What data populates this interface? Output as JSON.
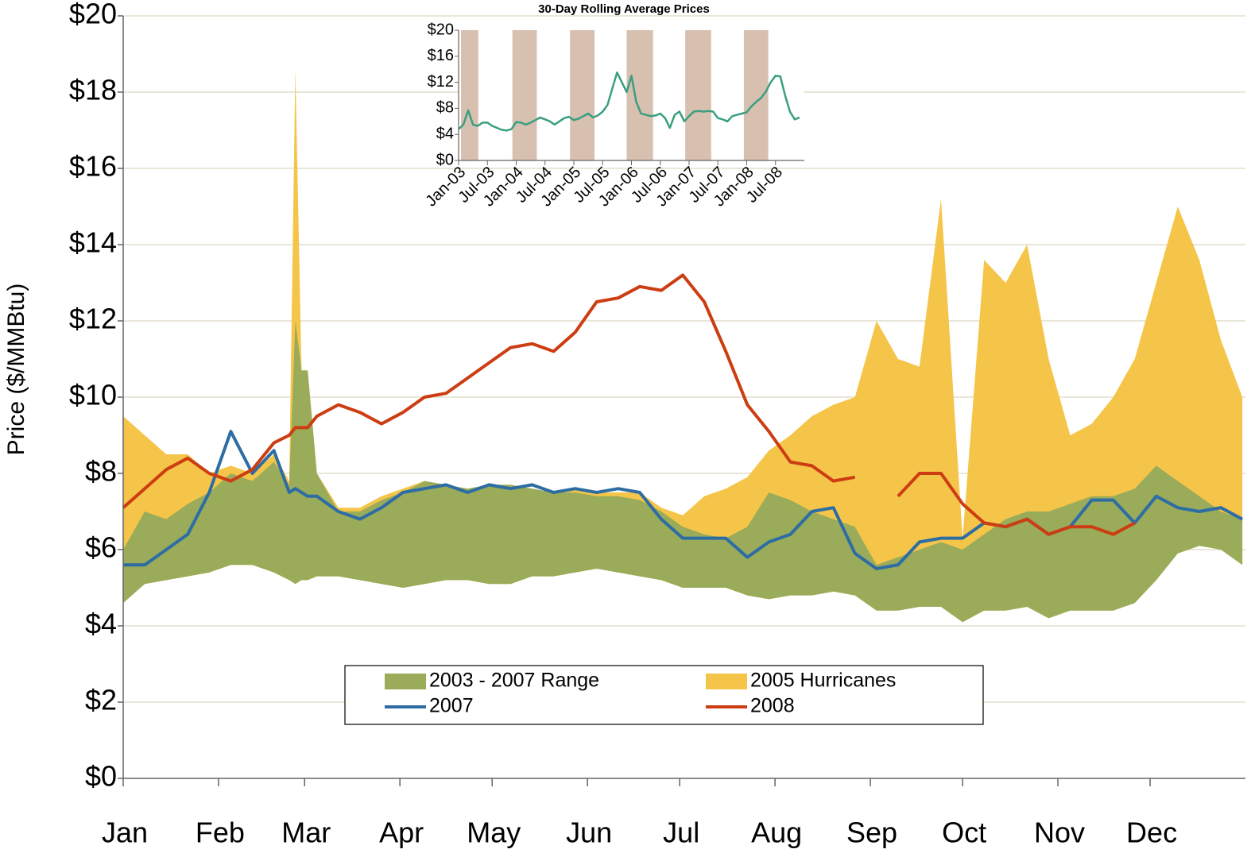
{
  "chart_data": [
    {
      "type": "line",
      "y_label": "Price ($/MMBtu)",
      "xlim": [
        0,
        365
      ],
      "xticks": [
        {
          "value": 0,
          "label": "Jan"
        },
        {
          "value": 31,
          "label": "Feb"
        },
        {
          "value": 59,
          "label": "Mar"
        },
        {
          "value": 90,
          "label": "Apr"
        },
        {
          "value": 120,
          "label": "May"
        },
        {
          "value": 151,
          "label": "Jun"
        },
        {
          "value": 181,
          "label": "Jul"
        },
        {
          "value": 212,
          "label": "Aug"
        },
        {
          "value": 243,
          "label": "Sep"
        },
        {
          "value": 273,
          "label": "Oct"
        },
        {
          "value": 304,
          "label": "Nov"
        },
        {
          "value": 334,
          "label": "Dec"
        }
      ],
      "ylim": [
        0,
        20
      ],
      "yticks": [
        {
          "value": 0,
          "label": "$0"
        },
        {
          "value": 2,
          "label": "$2"
        },
        {
          "value": 4,
          "label": "$4"
        },
        {
          "value": 6,
          "label": "$6"
        },
        {
          "value": 8,
          "label": "$8"
        },
        {
          "value": 10,
          "label": "$10"
        },
        {
          "value": 12,
          "label": "$12"
        },
        {
          "value": 14,
          "label": "$14"
        },
        {
          "value": 16,
          "label": "$16"
        },
        {
          "value": 18,
          "label": "$18"
        },
        {
          "value": 20,
          "label": "$20"
        }
      ],
      "grid": true,
      "x": [
        0,
        7,
        14,
        21,
        28,
        35,
        42,
        49,
        54,
        56,
        58,
        60,
        63,
        70,
        77,
        84,
        91,
        98,
        105,
        112,
        119,
        126,
        133,
        140,
        147,
        154,
        161,
        168,
        175,
        182,
        189,
        196,
        203,
        210,
        217,
        224,
        231,
        238,
        245,
        252,
        259,
        266,
        273,
        280,
        287,
        294,
        301,
        308,
        315,
        322,
        329,
        336,
        343,
        350,
        357,
        364
      ],
      "series": [
        {
          "name": "2003 - 2007 Range",
          "color": "#9aab5a",
          "low": [
            4.6,
            5.1,
            5.2,
            5.3,
            5.4,
            5.6,
            5.6,
            5.4,
            5.2,
            5.1,
            5.2,
            5.2,
            5.3,
            5.3,
            5.2,
            5.1,
            5.0,
            5.1,
            5.2,
            5.2,
            5.1,
            5.1,
            5.3,
            5.3,
            5.4,
            5.5,
            5.4,
            5.3,
            5.2,
            5.0,
            5.0,
            5.0,
            4.8,
            4.7,
            4.8,
            4.8,
            4.9,
            4.8,
            4.4,
            4.4,
            4.5,
            4.5,
            4.1,
            4.4,
            4.4,
            4.5,
            4.2,
            4.4,
            4.4,
            4.4,
            4.6,
            5.2,
            5.9,
            6.1,
            6.0,
            5.6
          ],
          "high": [
            6.0,
            7.0,
            6.8,
            7.2,
            7.5,
            8.0,
            7.8,
            8.3,
            7.7,
            12.0,
            10.7,
            10.7,
            8.0,
            7.0,
            7.0,
            7.3,
            7.5,
            7.8,
            7.7,
            7.6,
            7.7,
            7.7,
            7.6,
            7.5,
            7.5,
            7.4,
            7.4,
            7.3,
            7.0,
            6.6,
            6.4,
            6.3,
            6.6,
            7.5,
            7.3,
            7.0,
            6.8,
            6.6,
            5.6,
            5.8,
            6.0,
            6.2,
            6.0,
            6.4,
            6.8,
            7.0,
            7.0,
            7.2,
            7.4,
            7.4,
            7.6,
            8.2,
            7.8,
            7.4,
            7.0,
            6.8
          ]
        },
        {
          "name": "2005 Hurricanes",
          "color": "#f5c54a",
          "values": [
            9.5,
            9.0,
            8.5,
            8.5,
            8.0,
            8.2,
            8.0,
            8.5,
            7.8,
            18.6,
            10.7,
            10.7,
            8.0,
            7.1,
            7.1,
            7.4,
            7.6,
            7.8,
            7.7,
            7.6,
            7.7,
            7.7,
            7.6,
            7.5,
            7.6,
            7.5,
            7.5,
            7.5,
            7.1,
            6.9,
            7.4,
            7.6,
            7.9,
            8.6,
            9.0,
            9.5,
            9.8,
            10.0,
            12.0,
            11.0,
            10.8,
            15.2,
            6.3,
            13.6,
            13.0,
            14.0,
            11.0,
            9.0,
            9.3,
            10.0,
            11.0,
            13.0,
            15.0,
            13.6,
            11.5,
            10.0
          ]
        },
        {
          "name": "2007",
          "color": "#2e6da4",
          "values": [
            5.6,
            5.6,
            6.0,
            6.4,
            7.5,
            9.1,
            8.0,
            8.6,
            7.5,
            7.6,
            7.5,
            7.4,
            7.4,
            7.0,
            6.8,
            7.1,
            7.5,
            7.6,
            7.7,
            7.5,
            7.7,
            7.6,
            7.7,
            7.5,
            7.6,
            7.5,
            7.6,
            7.5,
            6.8,
            6.3,
            6.3,
            6.3,
            5.8,
            6.2,
            6.4,
            7.0,
            7.1,
            5.9,
            5.5,
            5.6,
            6.2,
            6.3,
            6.3,
            6.7,
            6.6,
            6.8,
            6.4,
            6.6,
            7.3,
            7.3,
            6.7,
            7.4,
            7.1,
            7.0,
            7.1,
            6.8
          ]
        },
        {
          "name": "2008",
          "color": "#cc3d12",
          "values": [
            7.1,
            7.6,
            8.1,
            8.4,
            8.0,
            7.8,
            8.1,
            8.8,
            9.0,
            9.2,
            9.2,
            9.2,
            9.5,
            9.8,
            9.6,
            9.3,
            9.6,
            10.0,
            10.1,
            10.5,
            10.9,
            11.3,
            11.4,
            11.2,
            11.7,
            12.5,
            12.6,
            12.9,
            12.8,
            13.2,
            12.5,
            11.2,
            9.8,
            9.1,
            8.3,
            8.2,
            7.8,
            7.9,
            null,
            7.4,
            8.0,
            8.0,
            7.2,
            6.7,
            6.6,
            6.8,
            6.4,
            6.6,
            6.6,
            6.4,
            6.7,
            null,
            null,
            null,
            null,
            null
          ]
        }
      ]
    },
    {
      "type": "line",
      "title": "30-Day Rolling Average Prices",
      "xlim": [
        0,
        72
      ],
      "xticks": [
        {
          "value": 0,
          "label": "Jan-03"
        },
        {
          "value": 6,
          "label": "Jul-03"
        },
        {
          "value": 12,
          "label": "Jan-04"
        },
        {
          "value": 18,
          "label": "Jul-04"
        },
        {
          "value": 24,
          "label": "Jan-05"
        },
        {
          "value": 30,
          "label": "Jul-05"
        },
        {
          "value": 36,
          "label": "Jan-06"
        },
        {
          "value": 42,
          "label": "Jul-06"
        },
        {
          "value": 48,
          "label": "Jan-07"
        },
        {
          "value": 54,
          "label": "Jul-07"
        },
        {
          "value": 60,
          "label": "Jan-08"
        },
        {
          "value": 66,
          "label": "Jul-08"
        }
      ],
      "ylim": [
        0,
        20
      ],
      "yticks": [
        {
          "value": 0,
          "label": "$0"
        },
        {
          "value": 4,
          "label": "$4"
        },
        {
          "value": 8,
          "label": "$8"
        },
        {
          "value": 12,
          "label": "$12"
        },
        {
          "value": 16,
          "label": "$16"
        },
        {
          "value": 20,
          "label": "$20"
        }
      ],
      "shaded_spans": [
        [
          0.5,
          4.1
        ],
        [
          11.2,
          16.3
        ],
        [
          23.2,
          28.3
        ],
        [
          35,
          40.5
        ],
        [
          47.2,
          52.6
        ],
        [
          59.4,
          64.5
        ]
      ],
      "shade_color": "#d8c0b0",
      "color": "#3a9e80",
      "x": [
        0,
        1,
        2,
        3,
        4,
        5,
        6,
        7,
        8,
        9,
        10,
        11,
        12,
        13,
        14,
        15,
        16,
        17,
        18,
        19,
        20,
        21,
        22,
        23,
        24,
        25,
        26,
        27,
        28,
        29,
        30,
        31,
        32,
        33,
        34,
        35,
        36,
        37,
        38,
        39,
        40,
        41,
        42,
        43,
        44,
        45,
        46,
        47,
        48,
        49,
        50,
        51,
        52,
        53,
        54,
        55,
        56,
        57,
        58,
        59,
        60,
        61,
        62,
        63,
        64,
        65,
        66,
        67,
        68,
        69,
        70,
        71
      ],
      "values": [
        4.8,
        5.5,
        7.7,
        5.5,
        5.3,
        5.8,
        5.8,
        5.3,
        5.0,
        4.7,
        4.6,
        4.8,
        5.9,
        5.8,
        5.5,
        5.8,
        6.2,
        6.6,
        6.3,
        6.0,
        5.5,
        6.0,
        6.5,
        6.7,
        6.2,
        6.4,
        6.8,
        7.2,
        6.6,
        6.9,
        7.5,
        8.5,
        11.0,
        13.5,
        12.0,
        10.5,
        13.0,
        9.0,
        7.2,
        7.0,
        6.8,
        6.9,
        7.2,
        6.5,
        5.0,
        7.0,
        7.5,
        6.0,
        6.8,
        7.5,
        7.6,
        7.5,
        7.6,
        7.5,
        6.5,
        6.3,
        6.0,
        6.8,
        7.0,
        7.2,
        7.4,
        8.3,
        9.0,
        9.6,
        10.6,
        12.0,
        13.0,
        12.9,
        10.0,
        7.5,
        6.3,
        6.6
      ]
    }
  ]
}
